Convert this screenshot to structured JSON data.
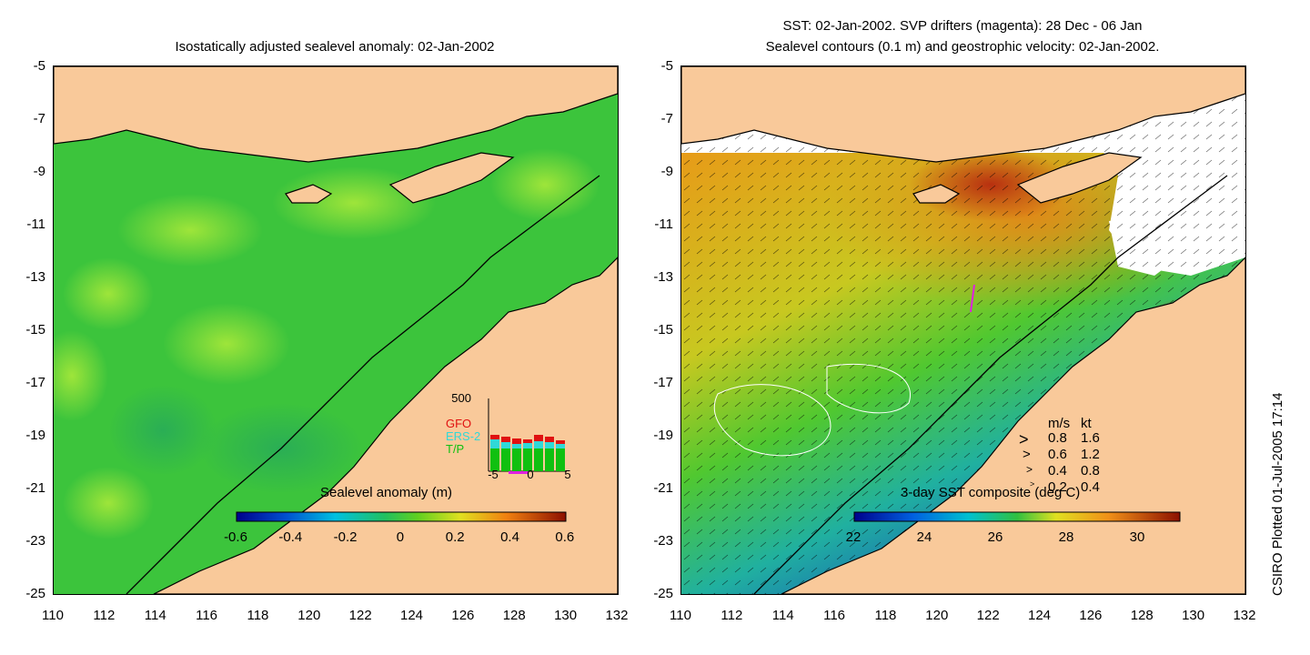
{
  "left_panel": {
    "title": "Isostatically adjusted sealevel anomaly: 02-Jan-2002",
    "yticks": [
      "-5",
      "-7",
      "-9",
      "-11",
      "-13",
      "-15",
      "-17",
      "-19",
      "-21",
      "-23",
      "-25"
    ],
    "xticks": [
      "110",
      "112",
      "114",
      "116",
      "118",
      "120",
      "122",
      "124",
      "126",
      "128",
      "130",
      "132"
    ],
    "colorbar": {
      "title": "Sealevel anomaly (m)",
      "ticks": [
        "-0.6",
        "-0.4",
        "-0.2",
        "0",
        "0.2",
        "0.4",
        "0.6"
      ]
    },
    "inset": {
      "ymax_label": "500",
      "xticks": [
        "-5",
        "0",
        "5"
      ],
      "legend": [
        {
          "label": "GFO",
          "color": "#e01010"
        },
        {
          "label": "ERS-2",
          "color": "#30d8d8"
        },
        {
          "label": "T/P",
          "color": "#10c010"
        }
      ]
    }
  },
  "right_panel": {
    "title_line1": "SST: 02-Jan-2002. SVP drifters (magenta): 28 Dec - 06 Jan",
    "title_line2": "Sealevel contours (0.1 m) and geostrophic velocity: 02-Jan-2002.",
    "yticks": [
      "-5",
      "-7",
      "-9",
      "-11",
      "-13",
      "-15",
      "-17",
      "-19",
      "-21",
      "-23",
      "-25"
    ],
    "xticks": [
      "110",
      "112",
      "114",
      "116",
      "118",
      "120",
      "122",
      "124",
      "126",
      "128",
      "130",
      "132"
    ],
    "colorbar": {
      "title": "3-day SST composite (deg C)",
      "ticks": [
        "22",
        "24",
        "26",
        "28",
        "30"
      ]
    },
    "velocity_legend": {
      "header_ms": "m/s",
      "header_kt": "kt",
      "rows": [
        {
          "ms": "0.8",
          "kt": "1.6"
        },
        {
          "ms": "0.6",
          "kt": "1.2"
        },
        {
          "ms": "0.4",
          "kt": "0.8"
        },
        {
          "ms": "0.2",
          "kt": "0.4"
        }
      ]
    }
  },
  "side_label": "CSIRO Plotted 01-Jul-2005 17:14",
  "colors": {
    "land": "#f9c99a",
    "sea_green": "#3cc43c",
    "sst_orange": "#e89a18",
    "sst_red": "#b02a10",
    "sst_blue": "#2050c8"
  }
}
